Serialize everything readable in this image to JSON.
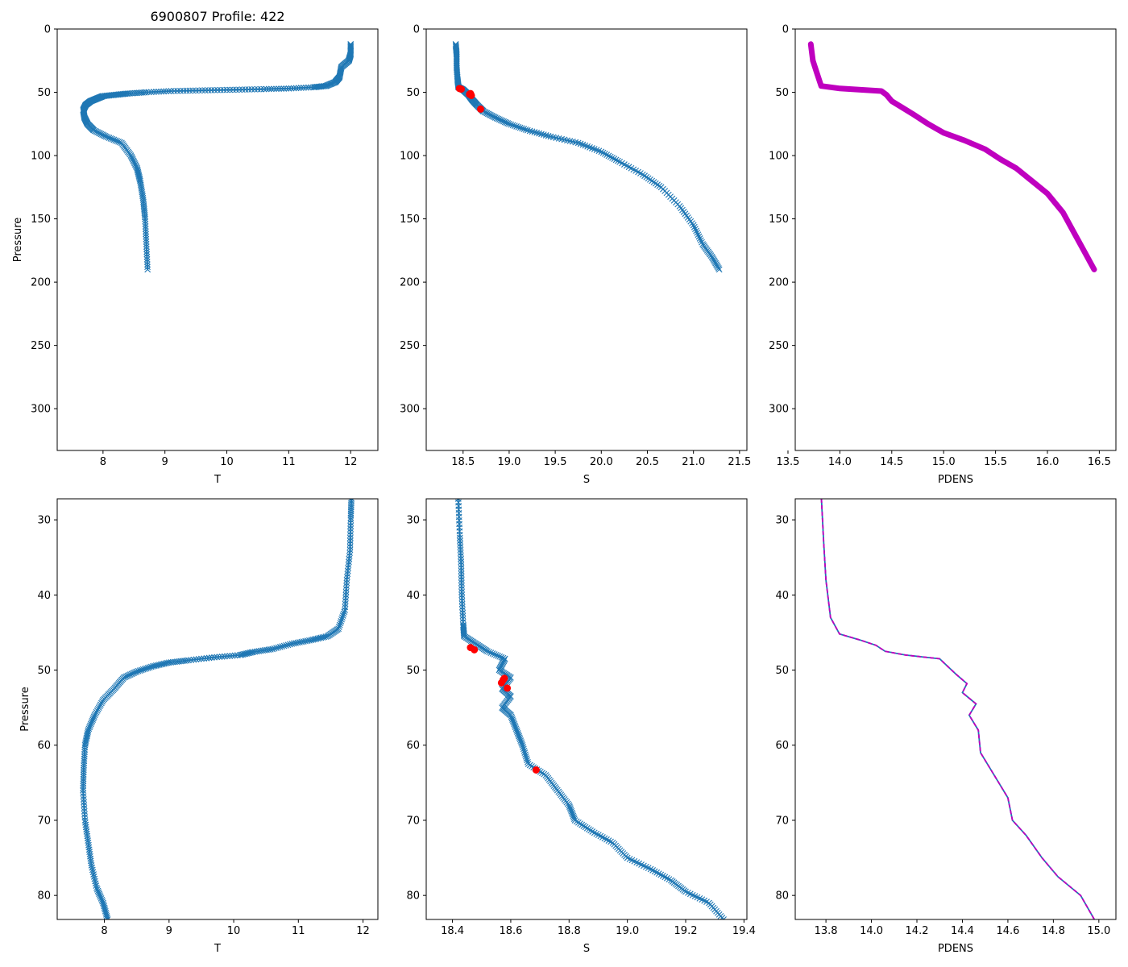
{
  "figure_title": "6900807 Profile: 422",
  "colors": {
    "series_blue": "#1f77b4",
    "flag_red": "#ff0000",
    "density_magenta": "#bf00bf",
    "axis_black": "#000000"
  },
  "chart_data": [
    {
      "id": "t_full",
      "type": "line",
      "title": "6900807 Profile: 422",
      "xlabel": "T",
      "ylabel": "Pressure",
      "xlim": [
        7.26,
        12.44
      ],
      "ylim": [
        333,
        0
      ],
      "xticks": [
        8,
        9,
        10,
        11,
        12
      ],
      "yticks": [
        0,
        50,
        100,
        150,
        200,
        250,
        300
      ],
      "marker": "x",
      "series": [
        {
          "name": "T",
          "color": "#1f77b4",
          "style": "line_x",
          "points": [
            [
              12.0,
              12
            ],
            [
              12.0,
              20
            ],
            [
              11.97,
              25
            ],
            [
              11.85,
              30
            ],
            [
              11.82,
              38
            ],
            [
              11.75,
              42
            ],
            [
              11.6,
              45
            ],
            [
              11.4,
              46
            ],
            [
              11.0,
              47
            ],
            [
              10.6,
              47.5
            ],
            [
              10.1,
              48
            ],
            [
              9.6,
              48.5
            ],
            [
              9.1,
              49
            ],
            [
              8.7,
              50
            ],
            [
              8.4,
              51
            ],
            [
              8.2,
              52
            ],
            [
              8.0,
              53
            ],
            [
              7.9,
              55
            ],
            [
              7.8,
              57
            ],
            [
              7.72,
              60
            ],
            [
              7.68,
              64
            ],
            [
              7.7,
              70
            ],
            [
              7.75,
              75
            ],
            [
              7.85,
              80
            ],
            [
              8.05,
              85
            ],
            [
              8.3,
              90
            ],
            [
              8.45,
              100
            ],
            [
              8.55,
              110
            ],
            [
              8.6,
              120
            ],
            [
              8.65,
              135
            ],
            [
              8.68,
              150
            ],
            [
              8.7,
              170
            ],
            [
              8.72,
              190
            ]
          ]
        }
      ]
    },
    {
      "id": "s_full",
      "type": "line",
      "xlabel": "S",
      "ylabel": "",
      "xlim": [
        18.1,
        21.58
      ],
      "ylim": [
        333,
        0
      ],
      "xticks": [
        "18.5",
        "19.0",
        "19.5",
        "20.0",
        "20.5",
        "21.0",
        "21.5"
      ],
      "yticks": [
        0,
        50,
        100,
        150,
        200,
        250,
        300
      ],
      "marker": "x",
      "series": [
        {
          "name": "S",
          "color": "#1f77b4",
          "style": "line_x",
          "points": [
            [
              18.42,
              12
            ],
            [
              18.43,
              20
            ],
            [
              18.43,
              30
            ],
            [
              18.44,
              40
            ],
            [
              18.45,
              46
            ],
            [
              18.5,
              48
            ],
            [
              18.56,
              52
            ],
            [
              18.6,
              56
            ],
            [
              18.65,
              60
            ],
            [
              18.72,
              65
            ],
            [
              18.85,
              70
            ],
            [
              19.0,
              75
            ],
            [
              19.2,
              80
            ],
            [
              19.45,
              85
            ],
            [
              19.75,
              90
            ],
            [
              20.0,
              97
            ],
            [
              20.2,
              105
            ],
            [
              20.45,
              115
            ],
            [
              20.65,
              125
            ],
            [
              20.85,
              140
            ],
            [
              21.0,
              155
            ],
            [
              21.1,
              170
            ],
            [
              21.2,
              180
            ],
            [
              21.28,
              190
            ]
          ]
        },
        {
          "name": "flagged",
          "color": "#ff0000",
          "style": "dots",
          "points": [
            [
              18.46,
              47
            ],
            [
              18.48,
              47.5
            ],
            [
              18.57,
              51.5
            ],
            [
              18.58,
              51
            ],
            [
              18.59,
              52.5
            ],
            [
              18.69,
              63.3
            ]
          ]
        }
      ]
    },
    {
      "id": "pdens_full",
      "type": "line",
      "xlabel": "PDENS",
      "ylabel": "",
      "xlim": [
        13.57,
        16.66
      ],
      "ylim": [
        333,
        0
      ],
      "xticks": [
        "13.5",
        "14.0",
        "14.5",
        "15.0",
        "15.5",
        "16.0",
        "16.5"
      ],
      "yticks": [
        0,
        50,
        100,
        150,
        200,
        250,
        300
      ],
      "series": [
        {
          "name": "PDENS",
          "color": "#bf00bf",
          "style": "thick",
          "points": [
            [
              13.72,
              12
            ],
            [
              13.74,
              25
            ],
            [
              13.78,
              35
            ],
            [
              13.82,
              45
            ],
            [
              14.0,
              47
            ],
            [
              14.2,
              48
            ],
            [
              14.4,
              49
            ],
            [
              14.45,
              52
            ],
            [
              14.5,
              57
            ],
            [
              14.6,
              62
            ],
            [
              14.7,
              67
            ],
            [
              14.85,
              75
            ],
            [
              15.0,
              82
            ],
            [
              15.2,
              88
            ],
            [
              15.4,
              95
            ],
            [
              15.55,
              103
            ],
            [
              15.7,
              110
            ],
            [
              15.85,
              120
            ],
            [
              16.0,
              130
            ],
            [
              16.15,
              145
            ],
            [
              16.25,
              160
            ],
            [
              16.35,
              175
            ],
            [
              16.45,
              190
            ]
          ]
        }
      ]
    },
    {
      "id": "t_zoom",
      "type": "line",
      "xlabel": "T",
      "ylabel": "Pressure",
      "xlim": [
        7.27,
        12.23
      ],
      "ylim": [
        83.2,
        27.2
      ],
      "xticks": [
        8,
        9,
        10,
        11,
        12
      ],
      "yticks": [
        30,
        40,
        50,
        60,
        70,
        80
      ],
      "marker": "x",
      "series": [
        {
          "name": "T",
          "color": "#1f77b4",
          "style": "line_x",
          "points": [
            [
              11.82,
              27.2
            ],
            [
              11.81,
              30
            ],
            [
              11.8,
              34
            ],
            [
              11.75,
              38
            ],
            [
              11.72,
              42
            ],
            [
              11.62,
              44.5
            ],
            [
              11.45,
              45.5
            ],
            [
              11.2,
              46
            ],
            [
              10.9,
              46.5
            ],
            [
              10.6,
              47.2
            ],
            [
              10.3,
              47.6
            ],
            [
              10.1,
              48
            ],
            [
              9.7,
              48.3
            ],
            [
              9.3,
              48.7
            ],
            [
              9.0,
              49
            ],
            [
              8.75,
              49.5
            ],
            [
              8.5,
              50.2
            ],
            [
              8.3,
              51
            ],
            [
              8.15,
              52.5
            ],
            [
              7.98,
              54
            ],
            [
              7.85,
              56
            ],
            [
              7.75,
              58
            ],
            [
              7.7,
              60
            ],
            [
              7.68,
              63
            ],
            [
              7.67,
              66
            ],
            [
              7.7,
              70
            ],
            [
              7.75,
              73
            ],
            [
              7.8,
              76
            ],
            [
              7.88,
              79
            ],
            [
              7.98,
              81
            ],
            [
              8.05,
              83.2
            ]
          ]
        }
      ]
    },
    {
      "id": "s_zoom",
      "type": "line",
      "xlabel": "S",
      "ylabel": "",
      "xlim": [
        18.31,
        19.41
      ],
      "ylim": [
        83.2,
        27.2
      ],
      "xticks": [
        "18.4",
        "18.6",
        "18.8",
        "19.0",
        "19.2",
        "19.4"
      ],
      "yticks": [
        30,
        40,
        50,
        60,
        70,
        80
      ],
      "marker": "x",
      "series": [
        {
          "name": "S",
          "color": "#1f77b4",
          "style": "line_x",
          "points": [
            [
              18.42,
              27.2
            ],
            [
              18.425,
              32
            ],
            [
              18.43,
              36
            ],
            [
              18.432,
              40
            ],
            [
              18.437,
              44
            ],
            [
              18.44,
              45.5
            ],
            [
              18.48,
              46.5
            ],
            [
              18.52,
              47.5
            ],
            [
              18.58,
              48.5
            ],
            [
              18.56,
              50
            ],
            [
              18.6,
              51
            ],
            [
              18.57,
              52.5
            ],
            [
              18.6,
              53.5
            ],
            [
              18.57,
              55
            ],
            [
              18.6,
              56
            ],
            [
              18.62,
              58
            ],
            [
              18.64,
              60
            ],
            [
              18.66,
              62.5
            ],
            [
              18.72,
              64
            ],
            [
              18.76,
              66
            ],
            [
              18.8,
              68
            ],
            [
              18.82,
              70
            ],
            [
              18.88,
              71.5
            ],
            [
              18.95,
              73
            ],
            [
              19.0,
              75
            ],
            [
              19.08,
              76.5
            ],
            [
              19.15,
              78
            ],
            [
              19.2,
              79.5
            ],
            [
              19.28,
              81
            ],
            [
              19.33,
              83.2
            ]
          ]
        },
        {
          "name": "flagged",
          "color": "#ff0000",
          "style": "dots",
          "points": [
            [
              18.462,
              47.0
            ],
            [
              18.475,
              47.3
            ],
            [
              18.574,
              51.3
            ],
            [
              18.578,
              51.1
            ],
            [
              18.568,
              51.7
            ],
            [
              18.588,
              52.4
            ],
            [
              18.687,
              63.3
            ]
          ]
        }
      ]
    },
    {
      "id": "pdens_zoom",
      "type": "line",
      "xlabel": "PDENS",
      "ylabel": "",
      "xlim": [
        13.665,
        15.075
      ],
      "ylim": [
        83.2,
        27.2
      ],
      "xticks": [
        "13.8",
        "14.0",
        "14.2",
        "14.4",
        "14.6",
        "14.8",
        "15.0"
      ],
      "yticks": [
        30,
        40,
        50,
        60,
        70,
        80
      ],
      "series": [
        {
          "name": "PDENS",
          "color": "#1f77b4",
          "style": "thin",
          "points": [
            [
              13.78,
              27.2
            ],
            [
              13.79,
              33
            ],
            [
              13.8,
              38
            ],
            [
              13.82,
              43
            ],
            [
              13.86,
              45.2
            ],
            [
              13.95,
              46
            ],
            [
              14.02,
              46.7
            ],
            [
              14.06,
              47.5
            ],
            [
              14.15,
              48
            ],
            [
              14.3,
              48.5
            ],
            [
              14.37,
              50.5
            ],
            [
              14.42,
              51.8
            ],
            [
              14.4,
              53
            ],
            [
              14.46,
              54.5
            ],
            [
              14.43,
              56
            ],
            [
              14.47,
              58
            ],
            [
              14.48,
              61
            ],
            [
              14.52,
              63
            ],
            [
              14.56,
              65
            ],
            [
              14.6,
              67
            ],
            [
              14.62,
              70
            ],
            [
              14.68,
              72
            ],
            [
              14.75,
              75
            ],
            [
              14.82,
              77.5
            ],
            [
              14.92,
              80
            ],
            [
              14.98,
              83.2
            ]
          ]
        },
        {
          "name": "PDENS_adjusted",
          "color": "#bf00bf",
          "style": "dashed",
          "points": [
            [
              13.78,
              27.2
            ],
            [
              13.79,
              33
            ],
            [
              13.8,
              38
            ],
            [
              13.82,
              43
            ],
            [
              13.86,
              45.2
            ],
            [
              13.95,
              46
            ],
            [
              14.02,
              46.7
            ],
            [
              14.06,
              47.5
            ],
            [
              14.15,
              48
            ],
            [
              14.3,
              48.5
            ],
            [
              14.37,
              50.5
            ],
            [
              14.42,
              51.8
            ],
            [
              14.4,
              53
            ],
            [
              14.46,
              54.5
            ],
            [
              14.43,
              56
            ],
            [
              14.47,
              58
            ],
            [
              14.48,
              61
            ],
            [
              14.52,
              63
            ],
            [
              14.56,
              65
            ],
            [
              14.6,
              67
            ],
            [
              14.62,
              70
            ],
            [
              14.68,
              72
            ],
            [
              14.75,
              75
            ],
            [
              14.82,
              77.5
            ],
            [
              14.92,
              80
            ],
            [
              14.98,
              83.2
            ]
          ]
        }
      ]
    }
  ]
}
